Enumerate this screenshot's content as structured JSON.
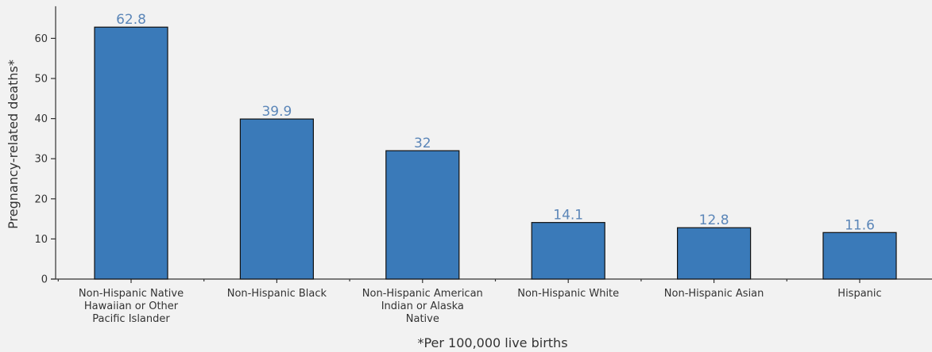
{
  "chart_data": {
    "type": "bar",
    "categories": [
      [
        "Non-Hispanic Native",
        "Hawaiian or Other",
        "Pacific Islander"
      ],
      [
        "Non-Hispanic Black"
      ],
      [
        "Non-Hispanic American",
        "Indian or Alaska",
        "Native"
      ],
      [
        "Non-Hispanic White"
      ],
      [
        "Non-Hispanic Asian"
      ],
      [
        "Hispanic"
      ]
    ],
    "values": [
      62.8,
      39.9,
      32,
      14.1,
      12.8,
      11.6
    ],
    "data_labels": [
      "62.8",
      "39.9",
      "32",
      "14.1",
      "12.8",
      "11.6"
    ],
    "ylabel": "Pregnancy-related deaths*",
    "xlabel": "*Per 100,000 live births",
    "yticks": [
      "0",
      "10",
      "20",
      "30",
      "40",
      "50",
      "60"
    ],
    "ylim": [
      0,
      68
    ],
    "grid": false,
    "colors": {
      "bar": "#3a7ab9",
      "label": "#5b86b8",
      "axis": "#333333",
      "background": "#f2f2f2"
    }
  }
}
